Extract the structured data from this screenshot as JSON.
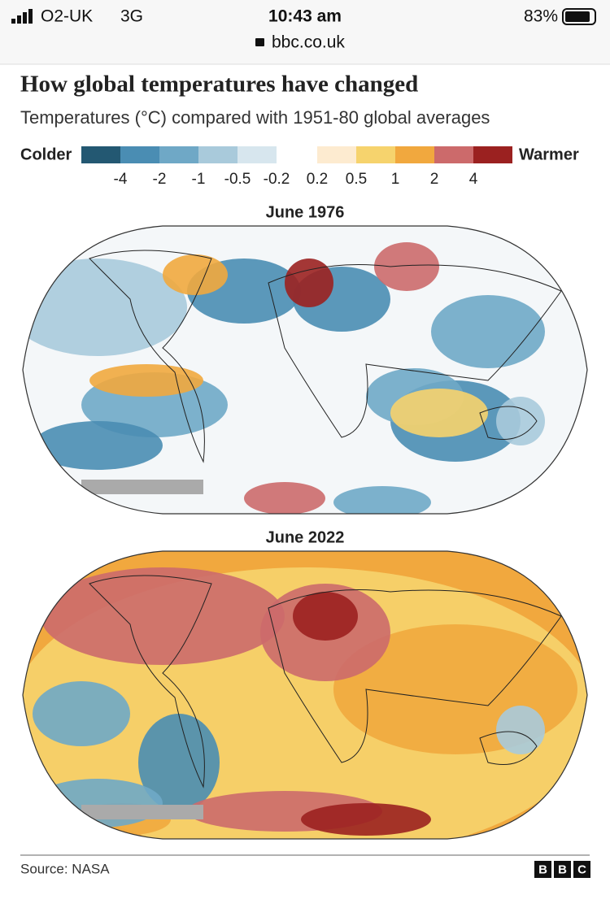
{
  "status_bar": {
    "carrier": "O2-UK",
    "network": "3G",
    "time": "10:43 am",
    "battery": "83%"
  },
  "browser": {
    "url": "bbc.co.uk"
  },
  "header": {
    "title": "How global temperatures have changed",
    "subtitle": "Temperatures (°C) compared with 1951-80 global averages"
  },
  "legend": {
    "colder_label": "Colder",
    "warmer_label": "Warmer",
    "cold_colors": [
      "#235872",
      "#4a8db3",
      "#6fa8c6",
      "#a9cadb",
      "#d7e6ee"
    ],
    "warm_colors": [
      "#fdebd0",
      "#f6d36d",
      "#f1a83e",
      "#cc6a6b",
      "#9b2120"
    ],
    "ticks": [
      -4,
      -2,
      -1,
      -0.5,
      -0.2,
      0.2,
      0.5,
      1,
      2,
      4
    ]
  },
  "maps": [
    {
      "title": "June 1976"
    },
    {
      "title": "June 2022"
    }
  ],
  "footer": {
    "source": "Source: NASA",
    "logo": [
      "B",
      "B",
      "C"
    ]
  }
}
